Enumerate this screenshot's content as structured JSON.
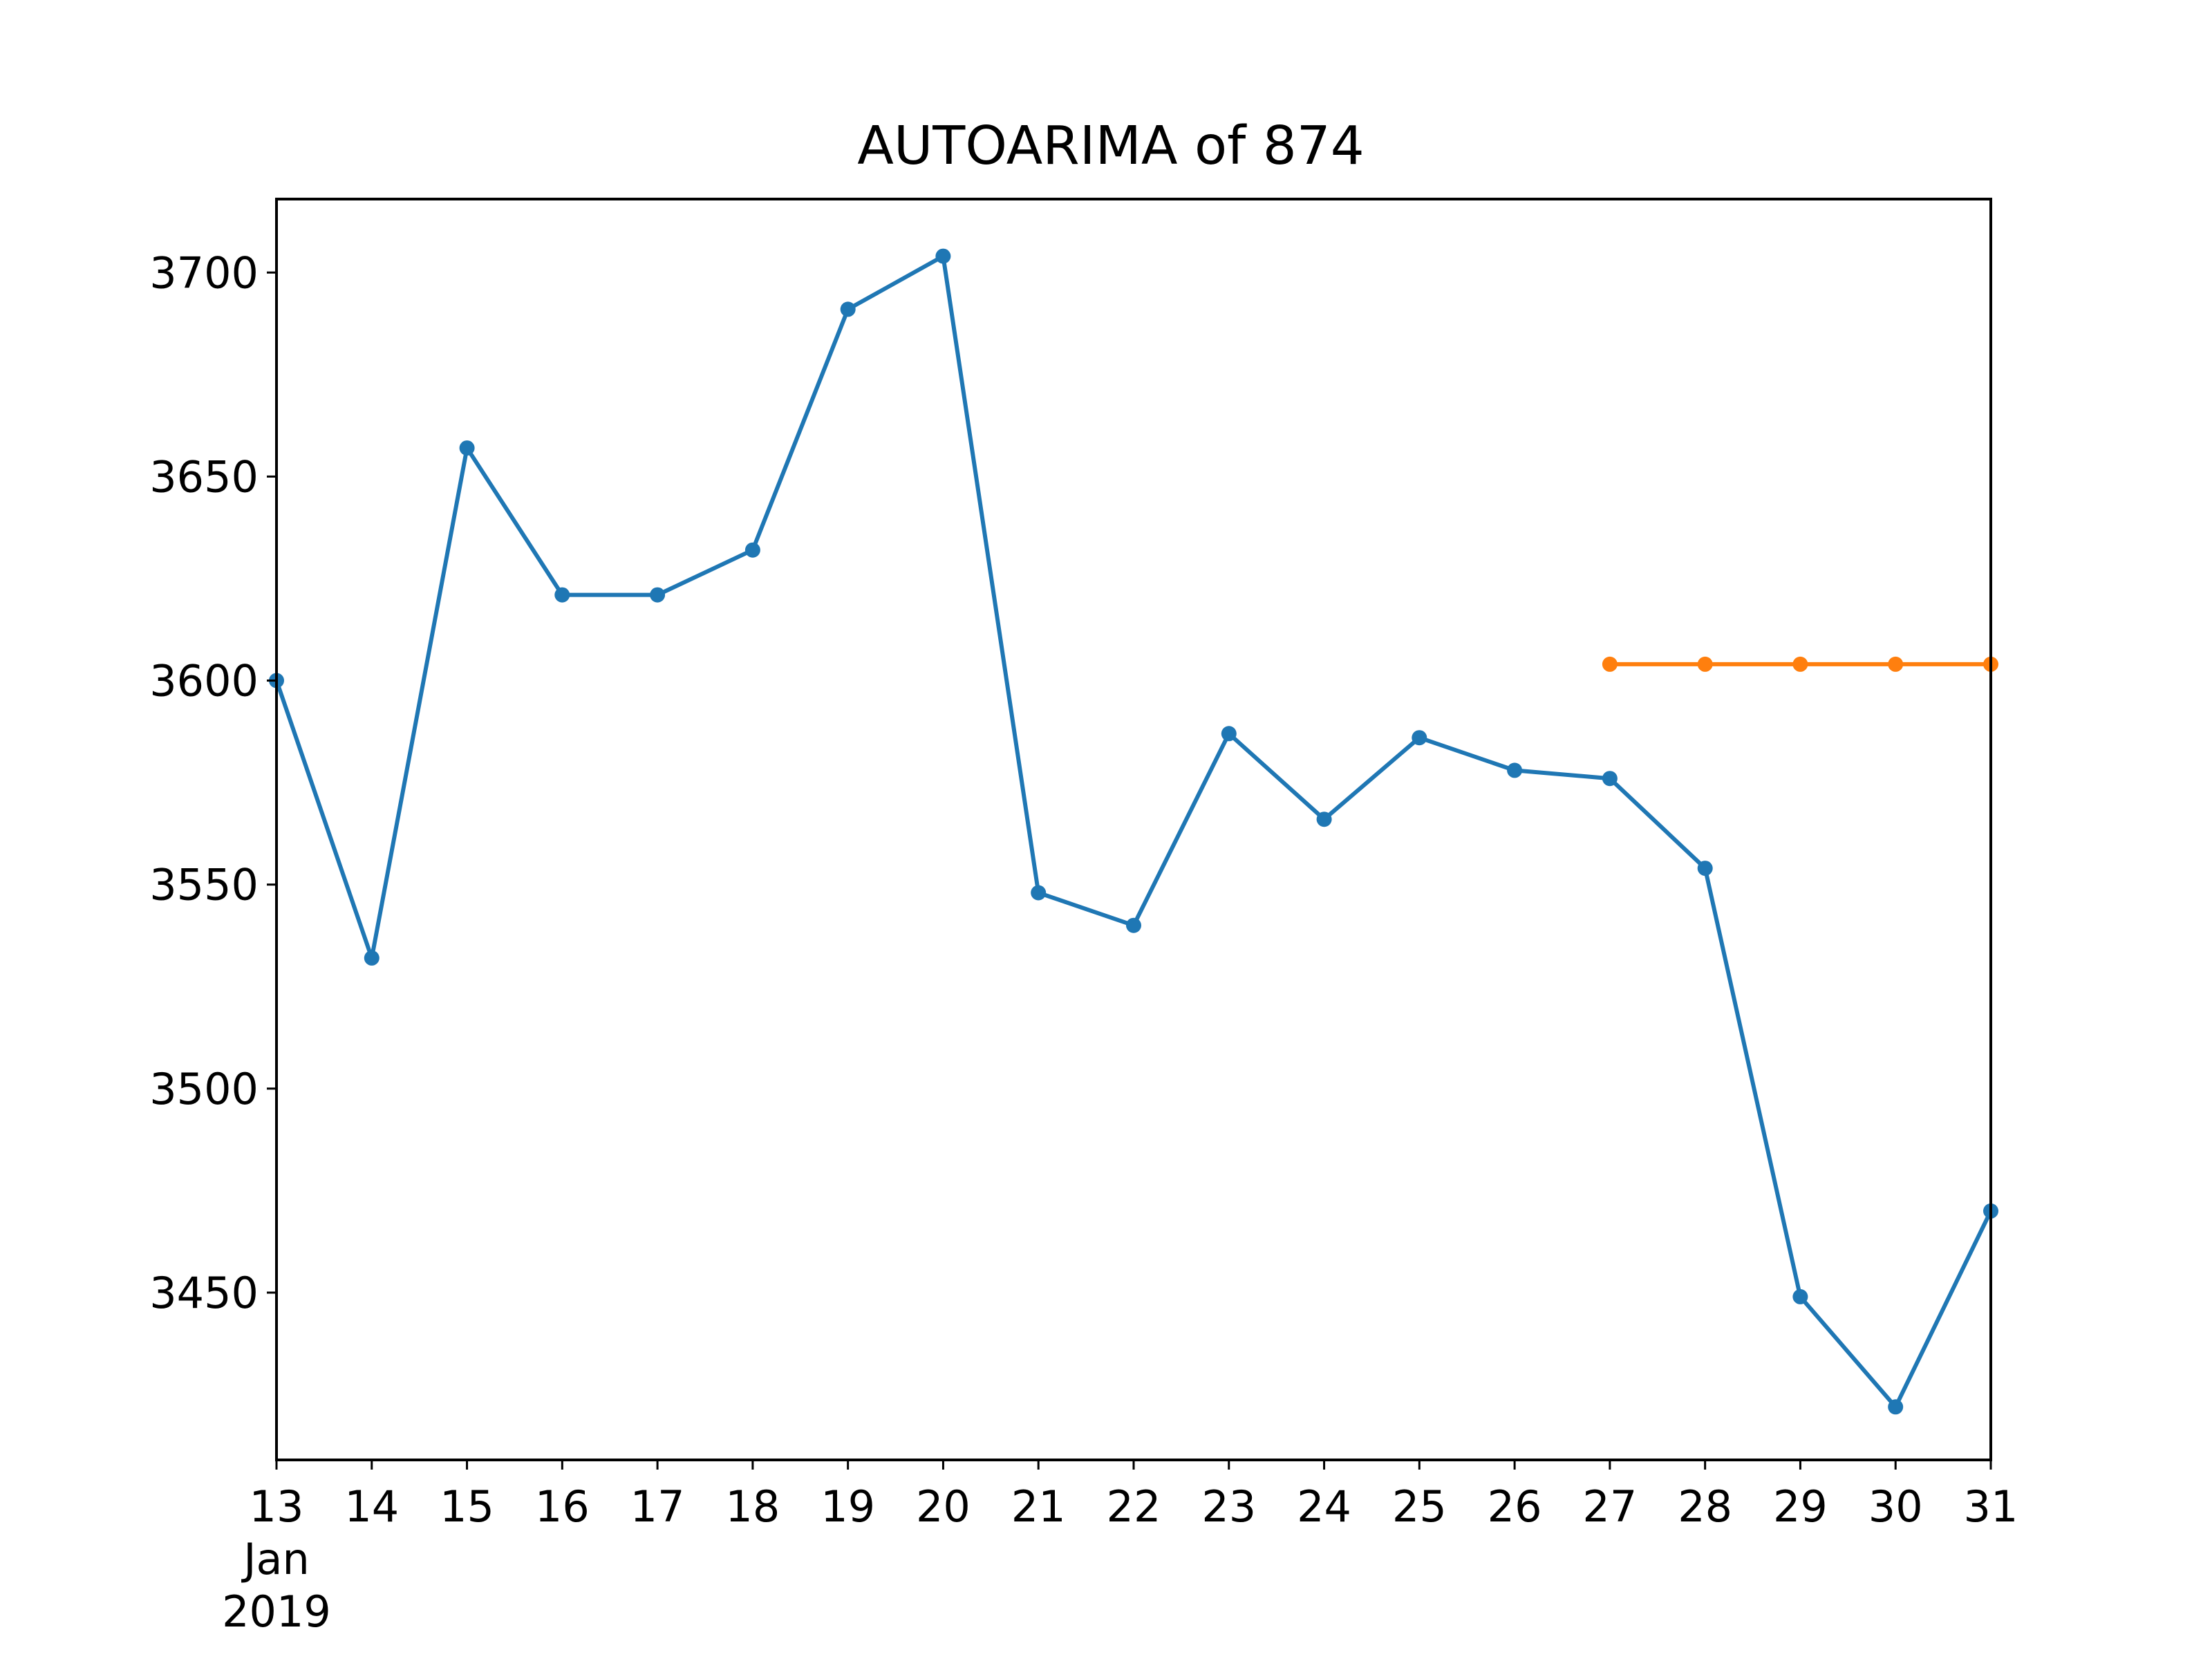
{
  "chart_data": {
    "type": "line",
    "title": "AUTOARIMA of 874",
    "xlabel": "",
    "ylabel": "",
    "x_tick_labels": [
      "13",
      "14",
      "15",
      "16",
      "17",
      "18",
      "19",
      "20",
      "21",
      "22",
      "23",
      "24",
      "25",
      "26",
      "27",
      "28",
      "29",
      "30",
      "31"
    ],
    "x_first_tick_sublabels": [
      "Jan",
      "2019"
    ],
    "xlim": [
      "2019-01-13",
      "2019-01-31"
    ],
    "y_ticks": [
      3450,
      3500,
      3550,
      3600,
      3650,
      3700
    ],
    "ylim": [
      3409,
      3718
    ],
    "grid": false,
    "legend": "none",
    "series": [
      {
        "color": "#1f77b4",
        "x": [
          "2019-01-13",
          "2019-01-14",
          "2019-01-15",
          "2019-01-16",
          "2019-01-17",
          "2019-01-18",
          "2019-01-19",
          "2019-01-20",
          "2019-01-21",
          "2019-01-22",
          "2019-01-23",
          "2019-01-24",
          "2019-01-25",
          "2019-01-26",
          "2019-01-27",
          "2019-01-28",
          "2019-01-29",
          "2019-01-30",
          "2019-01-31"
        ],
        "values": [
          3600,
          3532,
          3657,
          3621,
          3621,
          3632,
          3691,
          3704,
          3548,
          3540,
          3587,
          3566,
          3586,
          3578,
          3576,
          3554,
          3449,
          3422,
          3470
        ]
      },
      {
        "color": "#ff7f0e",
        "x": [
          "2019-01-27",
          "2019-01-28",
          "2019-01-29",
          "2019-01-30",
          "2019-01-31"
        ],
        "values": [
          3604,
          3604,
          3604,
          3604,
          3604
        ]
      }
    ]
  }
}
